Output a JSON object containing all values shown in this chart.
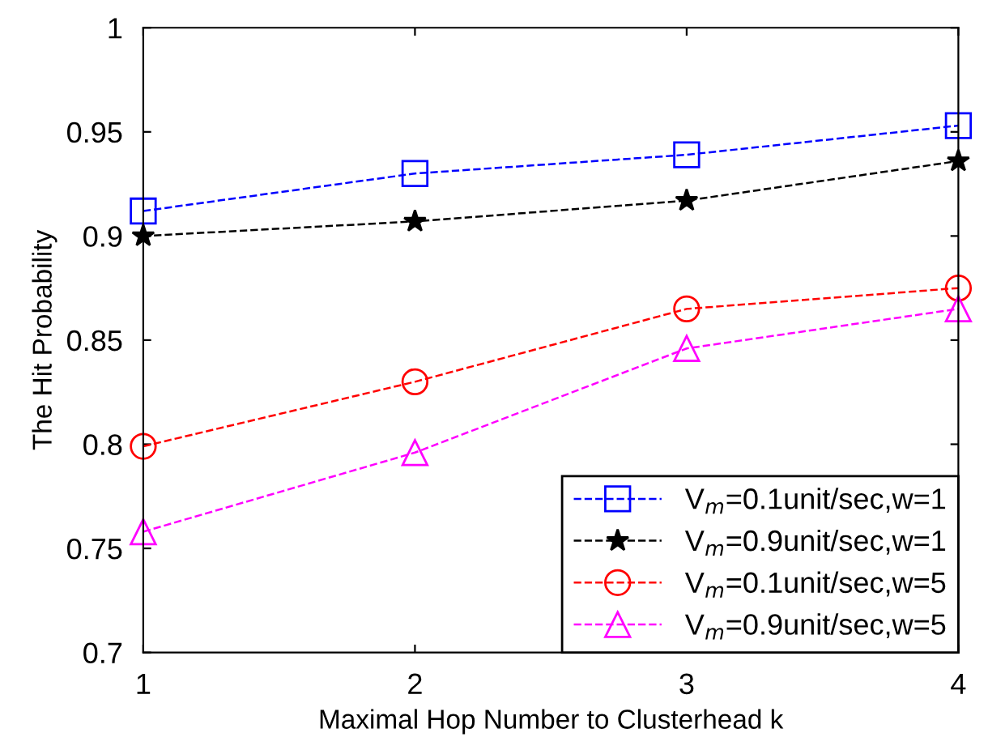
{
  "chart_data": {
    "type": "line",
    "xlabel": "Maximal Hop Number to Clusterhead k",
    "ylabel": "The Hit Probability",
    "x": [
      1,
      2,
      3,
      4
    ],
    "xlim": [
      1,
      4
    ],
    "xticks": [
      1,
      2,
      3,
      4
    ],
    "ylim": [
      0.7,
      1
    ],
    "yticks": [
      0.7,
      0.75,
      0.8,
      0.85,
      0.9,
      0.95,
      1
    ],
    "grid": false,
    "legend": "bottom right",
    "line_style": "dashed",
    "series": [
      {
        "name": "V$_{m}$=0.1unit/sec,w=1",
        "color": "#0000ff",
        "marker": "square",
        "values": [
          0.912,
          0.93,
          0.939,
          0.953
        ]
      },
      {
        "name": "V$_{m}$=0.9unit/sec,w=1",
        "color": "#000000",
        "marker": "star",
        "values": [
          0.9,
          0.907,
          0.917,
          0.936
        ]
      },
      {
        "name": "V$_{m}$=0.1unit/sec,w=5",
        "color": "#ff0000",
        "marker": "circle",
        "values": [
          0.799,
          0.83,
          0.865,
          0.875
        ]
      },
      {
        "name": "V$_{m}$=0.9unit/sec,w=5",
        "color": "#ff00ff",
        "marker": "triangle",
        "values": [
          0.758,
          0.796,
          0.846,
          0.865
        ]
      }
    ]
  }
}
